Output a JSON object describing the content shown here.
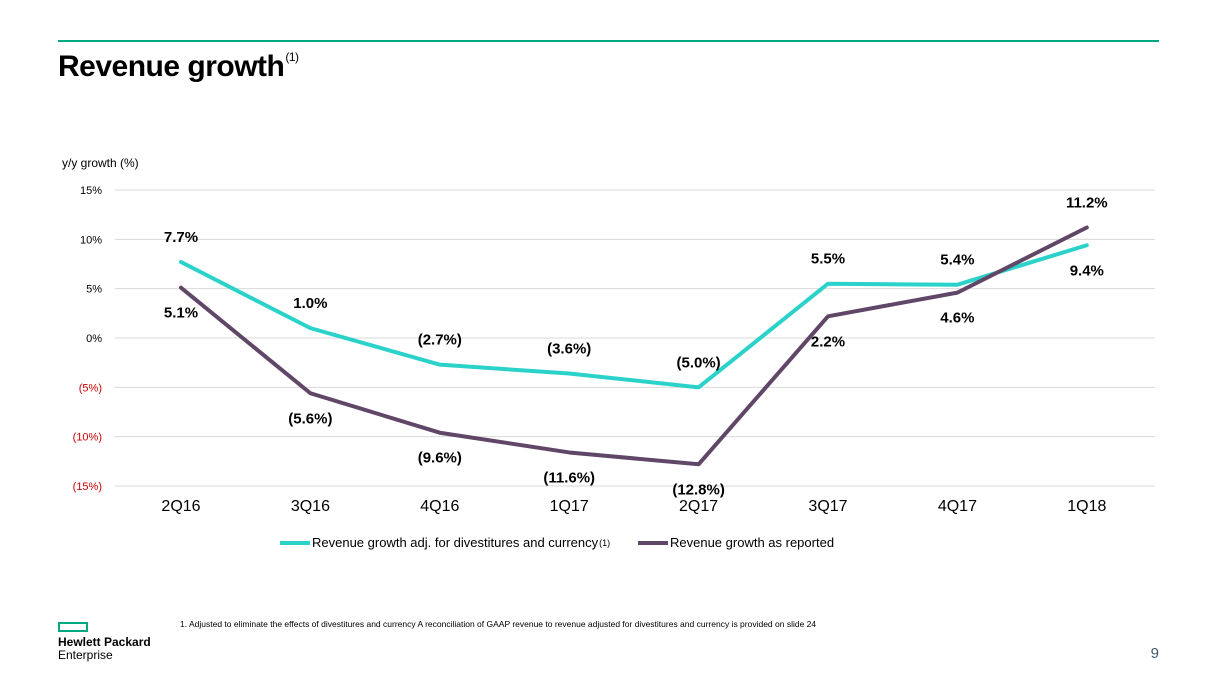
{
  "slide": {
    "title": "Revenue growth",
    "title_sup": "(1)",
    "footnote": "1.  Adjusted to eliminate the effects of divestitures and currency A reconciliation of GAAP revenue to revenue adjusted for divestitures and currency is provided on slide 24",
    "page_number": "9",
    "logo_line1": "Hewlett Packard",
    "logo_line2": "Enterprise"
  },
  "colors": {
    "accent_green": "#01a982",
    "series_adjusted": "#2ad2c9",
    "series_reported": "#614767",
    "negative_tick": "#cc0000",
    "grid": "#d9d9d9"
  },
  "chart_data": {
    "type": "line",
    "ylabel": "y/y  growth (%)",
    "ylim": [
      -15,
      15
    ],
    "yticks": [
      15,
      10,
      5,
      0,
      -5,
      -10,
      -15
    ],
    "ytick_labels": [
      "15%",
      "10%",
      "5%",
      "0%",
      "(5%)",
      "(10%)",
      "(15%)"
    ],
    "categories": [
      "2Q16",
      "3Q16",
      "4Q16",
      "1Q17",
      "2Q17",
      "3Q17",
      "4Q17",
      "1Q18"
    ],
    "grid": true,
    "legend_position": "bottom",
    "series": [
      {
        "name": "Revenue growth adj. for divestitures and currency",
        "name_sup": "(1)",
        "values": [
          7.7,
          1.0,
          -2.7,
          -3.6,
          -5.0,
          5.5,
          5.4,
          9.4
        ],
        "labels": [
          "7.7%",
          "1.0%",
          "(2.7%)",
          "(3.6%)",
          "(5.0%)",
          "5.5%",
          "5.4%",
          "9.4%"
        ]
      },
      {
        "name": "Revenue growth as reported",
        "values": [
          5.1,
          -5.6,
          -9.6,
          -11.6,
          -12.8,
          2.2,
          4.6,
          11.2
        ],
        "labels": [
          "5.1%",
          "(5.6%)",
          "(9.6%)",
          "(11.6%)",
          "(12.8%)",
          "2.2%",
          "4.6%",
          "11.2%"
        ]
      }
    ]
  }
}
